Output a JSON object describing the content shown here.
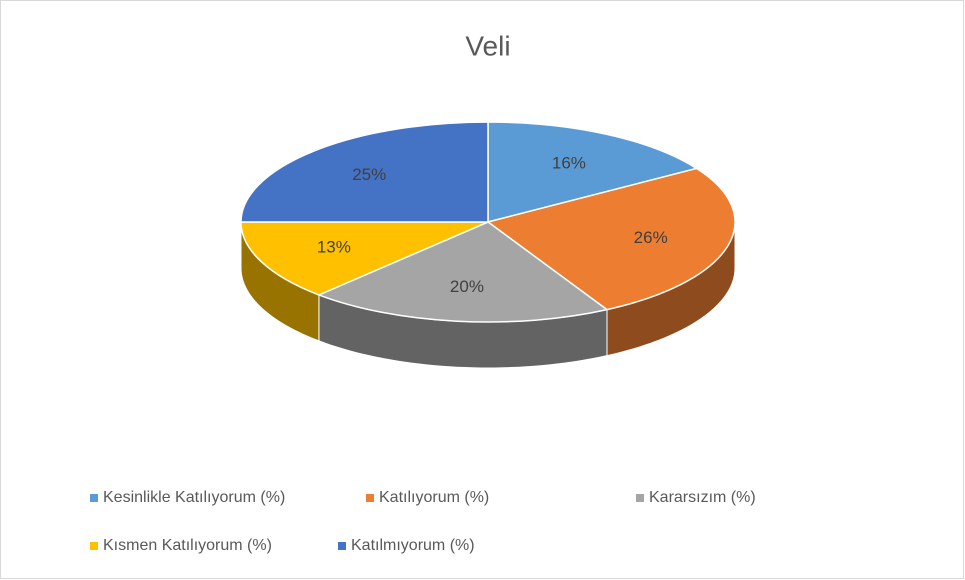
{
  "chart_data": {
    "type": "pie",
    "title": "Veli",
    "categories": [
      "Kesinlikle Katılıyorum (%)",
      "Katılıyorum (%)",
      "Kararsızım (%)",
      "Kısmen Katılıyorum (%)",
      "Katılmıyorum (%)"
    ],
    "values": [
      16,
      26,
      20,
      13,
      25
    ],
    "value_labels": [
      "16%",
      "26%",
      "20%",
      "13%",
      "25%"
    ],
    "colors": [
      "#5b9bd5",
      "#ed7d31",
      "#a5a5a5",
      "#ffc000",
      "#4472c4"
    ]
  }
}
